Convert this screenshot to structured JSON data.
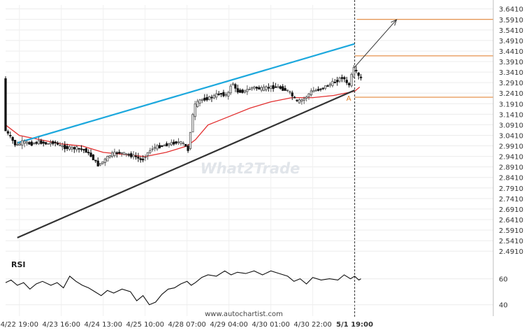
{
  "chart_data": [
    {
      "type": "candlestick",
      "title": "",
      "y_axis_side": "right",
      "y_ticks": [
        3.641,
        3.591,
        3.541,
        3.491,
        3.441,
        3.391,
        3.341,
        3.291,
        3.241,
        3.191,
        3.141,
        3.091,
        3.041,
        2.991,
        2.941,
        2.891,
        2.841,
        2.791,
        2.741,
        2.691,
        2.641,
        2.591,
        2.541,
        2.491
      ],
      "y_tick_labels": [
        "3.6410",
        "3.5910",
        "3.5410",
        "3.4910",
        "3.4410",
        "3.3910",
        "3.3410",
        "3.2910",
        "3.2410",
        "3.1910",
        "3.1410",
        "3.0910",
        "3.0410",
        "2.9910",
        "2.9410",
        "2.8910",
        "2.8410",
        "2.7910",
        "2.7410",
        "2.6910",
        "2.6410",
        "2.5910",
        "2.5410",
        "2.4910"
      ],
      "ylim": [
        2.475,
        3.66
      ],
      "x_tick_labels": [
        "4/22 19:00",
        "4/23 16:00",
        "4/24 13:00",
        "4/25 10:00",
        "4/28 07:00",
        "4/29 04:00",
        "4/30 01:00",
        "4/30 22:00",
        "5/1 19:00"
      ],
      "x_tick_positions": [
        0.0,
        1.0,
        2.0,
        3.0,
        4.0,
        5.0,
        6.0,
        7.0,
        8.0
      ],
      "xlim": [
        -0.33,
        9.04
      ],
      "price_path": [
        [
          -0.33,
          3.07
        ],
        [
          -0.18,
          3.03
        ],
        [
          -0.05,
          2.99
        ],
        [
          0.1,
          3.01
        ],
        [
          0.3,
          3.0
        ],
        [
          0.5,
          3.01
        ],
        [
          0.7,
          3.0
        ],
        [
          0.85,
          3.01
        ],
        [
          1.0,
          2.99
        ],
        [
          1.2,
          2.98
        ],
        [
          1.4,
          2.98
        ],
        [
          1.6,
          2.97
        ],
        [
          1.75,
          2.94
        ],
        [
          1.9,
          2.9
        ],
        [
          2.05,
          2.92
        ],
        [
          2.2,
          2.95
        ],
        [
          2.4,
          2.96
        ],
        [
          2.6,
          2.95
        ],
        [
          2.8,
          2.94
        ],
        [
          2.95,
          2.92
        ],
        [
          3.05,
          2.95
        ],
        [
          3.2,
          2.98
        ],
        [
          3.4,
          2.99
        ],
        [
          3.6,
          3.0
        ],
        [
          3.8,
          3.01
        ],
        [
          3.95,
          3.0
        ],
        [
          4.05,
          2.97
        ],
        [
          4.12,
          3.08
        ],
        [
          4.2,
          3.18
        ],
        [
          4.35,
          3.21
        ],
        [
          4.6,
          3.22
        ],
        [
          4.8,
          3.24
        ],
        [
          5.0,
          3.23
        ],
        [
          5.1,
          3.3
        ],
        [
          5.2,
          3.25
        ],
        [
          5.4,
          3.25
        ],
        [
          5.6,
          3.27
        ],
        [
          5.8,
          3.26
        ],
        [
          6.0,
          3.27
        ],
        [
          6.2,
          3.27
        ],
        [
          6.45,
          3.25
        ],
        [
          6.65,
          3.2
        ],
        [
          6.8,
          3.21
        ],
        [
          7.0,
          3.25
        ],
        [
          7.2,
          3.26
        ],
        [
          7.4,
          3.28
        ],
        [
          7.6,
          3.3
        ],
        [
          7.75,
          3.32
        ],
        [
          7.88,
          3.27
        ],
        [
          8.0,
          3.36
        ],
        [
          8.1,
          3.33
        ],
        [
          8.15,
          3.31
        ]
      ],
      "moving_average": [
        [
          -0.33,
          3.09
        ],
        [
          0.0,
          3.04
        ],
        [
          0.5,
          3.02
        ],
        [
          1.0,
          3.0
        ],
        [
          1.5,
          2.99
        ],
        [
          2.0,
          2.96
        ],
        [
          2.5,
          2.95
        ],
        [
          3.0,
          2.94
        ],
        [
          3.5,
          2.96
        ],
        [
          4.0,
          2.99
        ],
        [
          4.2,
          3.02
        ],
        [
          4.5,
          3.09
        ],
        [
          5.0,
          3.13
        ],
        [
          5.5,
          3.17
        ],
        [
          6.0,
          3.2
        ],
        [
          6.5,
          3.22
        ],
        [
          7.0,
          3.22
        ],
        [
          7.5,
          3.23
        ],
        [
          8.0,
          3.25
        ],
        [
          8.12,
          3.27
        ]
      ],
      "pattern": {
        "upper_line": [
          [
            -0.05,
            3.005
          ],
          [
            8.0,
            3.475
          ]
        ],
        "lower_line": [
          [
            -0.05,
            2.555
          ],
          [
            8.0,
            3.255
          ]
        ],
        "upper_color": "#1ca8dd",
        "lower_color": "#333333",
        "horizontal_levels": [
          3.591,
          3.418,
          3.222
        ],
        "level_color": "#e07820",
        "forecast_arrow": [
          [
            8.0,
            3.365
          ],
          [
            9.0,
            3.59
          ]
        ],
        "point_label": "A",
        "point_label_at": [
          7.86,
          3.205
        ]
      },
      "current_time_marker_x": 8.0,
      "watermark": "What2Trade",
      "footer_text": "www.autochartist.com"
    },
    {
      "type": "line",
      "title": "RSI",
      "y_ticks": [
        60,
        40
      ],
      "y_tick_labels": [
        "60",
        "40"
      ],
      "ylim": [
        35,
        70
      ],
      "x": [
        -0.33,
        -0.2,
        -0.05,
        0.1,
        0.25,
        0.4,
        0.55,
        0.75,
        0.9,
        1.05,
        1.2,
        1.35,
        1.5,
        1.65,
        1.8,
        1.95,
        2.1,
        2.25,
        2.45,
        2.65,
        2.8,
        2.95,
        3.1,
        3.25,
        3.4,
        3.55,
        3.7,
        3.85,
        4.0,
        4.1,
        4.2,
        4.35,
        4.5,
        4.7,
        4.9,
        5.05,
        5.2,
        5.4,
        5.6,
        5.8,
        6.0,
        6.2,
        6.4,
        6.55,
        6.7,
        6.85,
        7.0,
        7.2,
        7.4,
        7.6,
        7.75,
        7.9,
        8.0,
        8.1,
        8.15
      ],
      "values": [
        57,
        59,
        55,
        57,
        52,
        56,
        58,
        55,
        57,
        53,
        62,
        58,
        55,
        53,
        50,
        47,
        51,
        49,
        52,
        50,
        43,
        47,
        40,
        42,
        48,
        52,
        53,
        56,
        58,
        55,
        57,
        61,
        63,
        62,
        66,
        63,
        65,
        64,
        66,
        63,
        66,
        64,
        62,
        58,
        60,
        56,
        61,
        59,
        60,
        59,
        63,
        60,
        62,
        59,
        60
      ]
    }
  ]
}
